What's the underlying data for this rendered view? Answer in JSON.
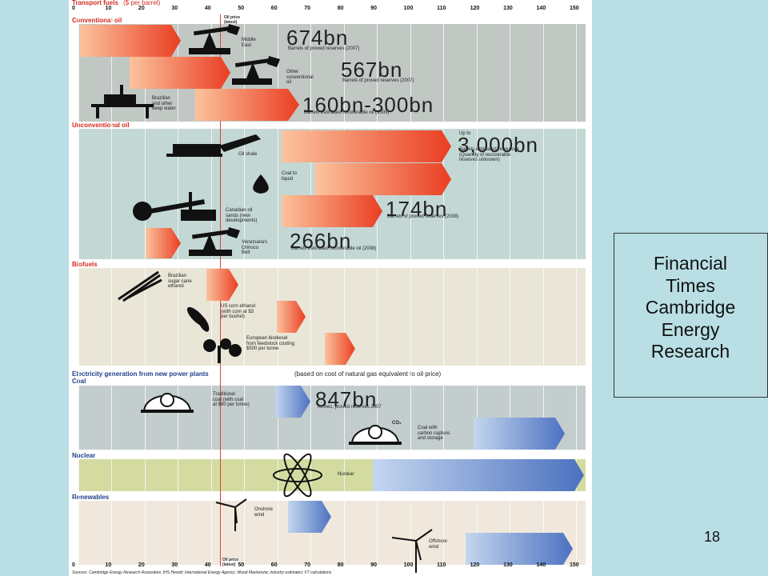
{
  "header": {
    "title": "Transport fuels",
    "unit": "($ per barrel)",
    "ticks": [
      "0",
      "10",
      "20",
      "30",
      "40",
      "50",
      "60",
      "70",
      "80",
      "90",
      "100",
      "110",
      "120",
      "130",
      "140",
      "150"
    ],
    "oil_price_label": "Oil price\n(latest)"
  },
  "sections": {
    "conventional": "Conventional oil",
    "unconventional": "Unconventional oil",
    "biofuels": "Biofuels",
    "electricity": "Electricity generation from new power plants",
    "electricity_note": "(based on cost of natural gas equivalent to oil price)",
    "coal": "Coal",
    "nuclear": "Nuclear",
    "renewables": "Renewables"
  },
  "rows": {
    "middle_east": {
      "label": "Middle\nEast",
      "big": "674bn",
      "sub": "Barrels of proved reserves (2007)"
    },
    "other_conventional": {
      "label": "Other\nconventional\noil",
      "big": "567bn",
      "sub": "Barrels of proved reserves (2007)"
    },
    "deep_water": {
      "label": "Brazilian\nand other\ndeep water",
      "big": "160bn-300bn",
      "sub": "Barrels estimated recoverable oil (2005)"
    },
    "oil_shale": {
      "label": "Oil shale",
      "prefix": "Up to",
      "big": "3,000bn",
      "sub": "Barrels estimated resources\n(Quantity of recoverable\nreserves unknown)"
    },
    "coal_liquid": {
      "label": "Coal to\nliquid"
    },
    "oil_sands": {
      "label": "Canadian oil\nsands (new\ndevelopments)",
      "big": "174bn",
      "sub": "Barrels of proved reserves (2008)"
    },
    "orinoco": {
      "label": "Venezuela's\nOrinoco\nBelt",
      "big": "266bn",
      "sub": "Barrels estimated recoverable oil (2008)"
    },
    "sugarcane": {
      "label": "Brazilian\nsugar cane\nethanol"
    },
    "corn": {
      "label": "US corn ethanol\n(with corn at $3\nper bushel)"
    },
    "biodiesel": {
      "label": "European biodiesel\nfrom feedstock costing\n$500 per tonne"
    },
    "trad_coal": {
      "label": "Traditional\ncoal (with coal\nat $80 per tonne)",
      "big": "847bn",
      "sub": "Tonnes, proved reserves 2007"
    },
    "ccs_coal": {
      "label": "Coal with\ncarbon capture\nand storage",
      "co2": "CO₂"
    },
    "nuclear": {
      "label": "Nuclear"
    },
    "onshore": {
      "label": "Onshore\nwind"
    },
    "offshore": {
      "label": "Offshore\nwind"
    }
  },
  "source": "Sources: Cambridge Energy Research Associates; IHS Herold; International Energy Agency; Wood Mackenzie; industry estimates; FT calculations",
  "caption": "Financial\nTimes\nCambridge\nEnergy\nResearch",
  "page_number": "18",
  "colors": {
    "oil_arrow_start": "#fbc39d",
    "oil_arrow_end": "#ea3e22",
    "elec_arrow_start": "#c4d6ef",
    "elec_arrow_end": "#4c72c0",
    "conventional_band": "#c1c8c4",
    "unconventional_band": "#c3d7d4",
    "biofuels_band": "#e9e6d8",
    "coal_band": "#c3cdcd",
    "nuclear_band": "#d4dba0",
    "renewables_band": "#f0e8dc",
    "section_title": "#d42a1f",
    "background": "#b9dfe5"
  }
}
